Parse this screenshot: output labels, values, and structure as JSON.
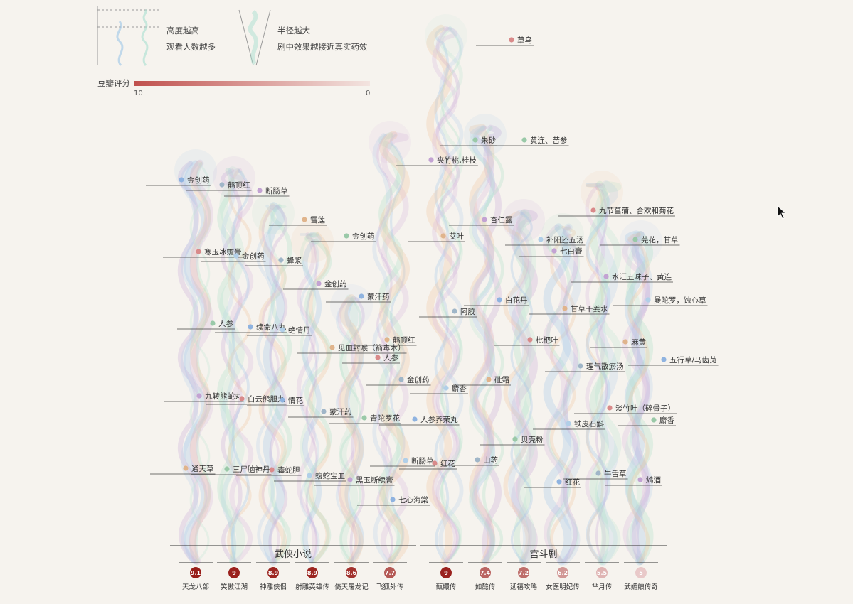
{
  "legend": {
    "height_line1": "高度越高",
    "height_line2": "观看人数越多",
    "radius_line1": "半径越大",
    "radius_line2": "剧中效果越接近真实药效",
    "rating_label": "豆瓣评分",
    "rating_max": "10",
    "rating_min": "0",
    "color_high": "#c0504d",
    "color_low": "#f3e4e0"
  },
  "chart_data": {
    "type": "other",
    "groups": [
      {
        "name": "武侠小说",
        "shows": [
          {
            "name": "天龙八部",
            "score": "9.1"
          },
          {
            "name": "笑傲江湖",
            "score": "9"
          },
          {
            "name": "神雕侠侣",
            "score": "8.9"
          },
          {
            "name": "射雕英雄传",
            "score": "8.9"
          },
          {
            "name": "倚天屠龙记",
            "score": "8.6"
          },
          {
            "name": "飞狐外传",
            "score": "7.7"
          }
        ]
      },
      {
        "name": "宫斗剧",
        "shows": [
          {
            "name": "甄嬛传",
            "score": "9"
          },
          {
            "name": "如懿传",
            "score": "7.4"
          },
          {
            "name": "延禧攻略",
            "score": "7.2"
          },
          {
            "name": "女医明妃传",
            "score": "6.2"
          },
          {
            "name": "芈月传",
            "score": "5.5"
          },
          {
            "name": "武媚娘传奇",
            "score": "5"
          }
        ]
      }
    ],
    "medicines": [
      {
        "name": "金创药",
        "show": "天龙八部"
      },
      {
        "name": "寒玉冰蟾膏",
        "show": "天龙八部"
      },
      {
        "name": "人参",
        "show": "天龙八部"
      },
      {
        "name": "九转熊蛇丸",
        "show": "天龙八部"
      },
      {
        "name": "通天草",
        "show": "天龙八部"
      },
      {
        "name": "鹤顶红",
        "show": "笑傲江湖"
      },
      {
        "name": "金创药",
        "show": "笑傲江湖"
      },
      {
        "name": "续命八丸",
        "show": "笑傲江湖"
      },
      {
        "name": "白云熊胆丸",
        "show": "笑傲江湖"
      },
      {
        "name": "三尸脑神丹",
        "show": "笑傲江湖"
      },
      {
        "name": "断肠草",
        "show": "神雕侠侣"
      },
      {
        "name": "雪莲",
        "show": "神雕侠侣"
      },
      {
        "name": "蜂浆",
        "show": "神雕侠侣"
      },
      {
        "name": "绝情丹",
        "show": "神雕侠侣"
      },
      {
        "name": "情花",
        "show": "神雕侠侣"
      },
      {
        "name": "毒蛇胆",
        "show": "神雕侠侣"
      },
      {
        "name": "金创药",
        "show": "射雕英雄传"
      },
      {
        "name": "金创药",
        "show": "射雕英雄传"
      },
      {
        "name": "见血封喉（箭毒木）",
        "show": "射雕英雄传"
      },
      {
        "name": "蒙汗药",
        "show": "射雕英雄传"
      },
      {
        "name": "蝮蛇宝血",
        "show": "射雕英雄传"
      },
      {
        "name": "蒙汗药",
        "show": "倚天屠龙记"
      },
      {
        "name": "人参",
        "show": "倚天屠龙记"
      },
      {
        "name": "青陀罗花",
        "show": "倚天屠龙记"
      },
      {
        "name": "黑玉断续膏",
        "show": "倚天屠龙记"
      },
      {
        "name": "鹤顶红",
        "show": "飞狐外传"
      },
      {
        "name": "金创药",
        "show": "飞狐外传"
      },
      {
        "name": "断肠草",
        "show": "飞狐外传"
      },
      {
        "name": "七心海棠",
        "show": "飞狐外传"
      },
      {
        "name": "草乌",
        "show": "甄嬛传"
      },
      {
        "name": "朱砂",
        "show": "甄嬛传"
      },
      {
        "name": "夹竹桃,桂枝",
        "show": "甄嬛传"
      },
      {
        "name": "艾叶",
        "show": "甄嬛传"
      },
      {
        "name": "阿胶",
        "show": "甄嬛传"
      },
      {
        "name": "麝香",
        "show": "甄嬛传"
      },
      {
        "name": "人参养荣丸",
        "show": "甄嬛传"
      },
      {
        "name": "红花",
        "show": "甄嬛传"
      },
      {
        "name": "黄连、苦参",
        "show": "如懿传"
      },
      {
        "name": "杏仁露",
        "show": "如懿传"
      },
      {
        "name": "砒霜",
        "show": "如懿传"
      },
      {
        "name": "山药",
        "show": "如懿传"
      },
      {
        "name": "补阳还五汤",
        "show": "延禧攻略"
      },
      {
        "name": "白花丹",
        "show": "延禧攻略"
      },
      {
        "name": "枇杷叶",
        "show": "延禧攻略"
      },
      {
        "name": "贝壳粉",
        "show": "延禧攻略"
      },
      {
        "name": "七白膏",
        "show": "女医明妃传"
      },
      {
        "name": "甘草干姜水",
        "show": "女医明妃传"
      },
      {
        "name": "理气散瘀汤",
        "show": "女医明妃传"
      },
      {
        "name": "铁皮石斛",
        "show": "女医明妃传"
      },
      {
        "name": "红花",
        "show": "女医明妃传"
      },
      {
        "name": "九节菖蒲、合欢和菊花",
        "show": "芈月传"
      },
      {
        "name": "芫花，甘草",
        "show": "芈月传"
      },
      {
        "name": "水汇五味子、黄连",
        "show": "芈月传"
      },
      {
        "name": "麻黄",
        "show": "芈月传"
      },
      {
        "name": "牛舌草",
        "show": "芈月传"
      },
      {
        "name": "曼陀罗，蚀心草",
        "show": "武媚娘传奇"
      },
      {
        "name": "五行草/马齿苋",
        "show": "武媚娘传奇"
      },
      {
        "name": "淡竹叶（碎骨子）",
        "show": "武媚娘传奇"
      },
      {
        "name": "麝香",
        "show": "武媚娘传奇"
      },
      {
        "name": "鸩酒",
        "show": "武媚娘传奇"
      }
    ]
  }
}
